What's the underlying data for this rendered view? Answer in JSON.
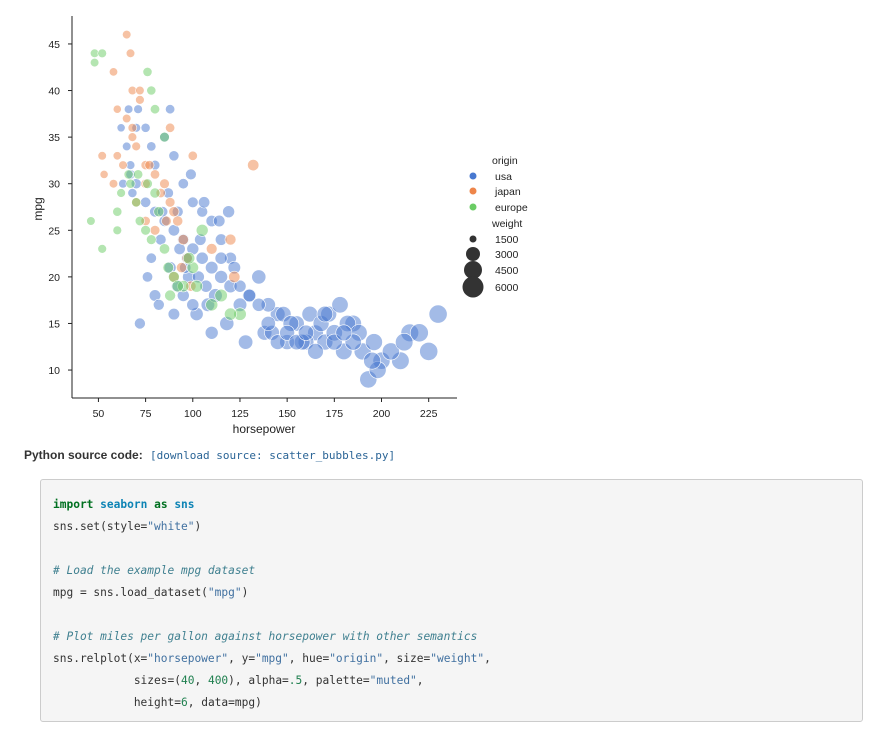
{
  "chart_data": {
    "type": "scatter",
    "title": "",
    "xlabel": "horsepower",
    "ylabel": "mpg",
    "xlim": [
      36,
      240
    ],
    "ylim": [
      7,
      48
    ],
    "xticks": [
      "50",
      "75",
      "100",
      "125",
      "150",
      "175",
      "200",
      "225"
    ],
    "yticks": [
      "10",
      "15",
      "20",
      "25",
      "30",
      "35",
      "40",
      "45"
    ],
    "hue": "origin",
    "size": "weight",
    "alpha": 0.5,
    "legend": {
      "placement": "right",
      "hue_title": "origin",
      "hue_entries": [
        {
          "label": "usa",
          "color": "#4878d0"
        },
        {
          "label": "japan",
          "color": "#ee854a"
        },
        {
          "label": "europe",
          "color": "#6acc64"
        }
      ],
      "size_title": "weight",
      "size_entries": [
        "1500",
        "3000",
        "4500",
        "6000"
      ]
    },
    "series": [
      {
        "name": "usa",
        "color": "#4878d0",
        "points": [
          [
            150,
            13,
            4100
          ],
          [
            165,
            14,
            4300
          ],
          [
            170,
            13,
            4400
          ],
          [
            175,
            14,
            4500
          ],
          [
            180,
            12,
            4600
          ],
          [
            190,
            12,
            4700
          ],
          [
            200,
            11,
            4800
          ],
          [
            210,
            11,
            4900
          ],
          [
            215,
            14,
            5000
          ],
          [
            220,
            14,
            5100
          ],
          [
            225,
            12,
            5100
          ],
          [
            230,
            16,
            5100
          ],
          [
            193,
            9,
            4800
          ],
          [
            198,
            10,
            4700
          ],
          [
            185,
            15,
            4600
          ],
          [
            160,
            13,
            4300
          ],
          [
            155,
            15,
            4200
          ],
          [
            145,
            16,
            4000
          ],
          [
            140,
            17,
            3900
          ],
          [
            135,
            20,
            3800
          ],
          [
            130,
            18,
            3700
          ],
          [
            125,
            17,
            3600
          ],
          [
            120,
            19,
            3500
          ],
          [
            115,
            20,
            3400
          ],
          [
            110,
            21,
            3300
          ],
          [
            105,
            22,
            3200
          ],
          [
            100,
            23,
            3100
          ],
          [
            95,
            24,
            3000
          ],
          [
            90,
            25,
            2900
          ],
          [
            85,
            26,
            2800
          ],
          [
            80,
            27,
            2700
          ],
          [
            75,
            28,
            2600
          ],
          [
            70,
            30,
            2500
          ],
          [
            67,
            31,
            2300
          ],
          [
            72,
            15,
            2800
          ],
          [
            80,
            18,
            3000
          ],
          [
            88,
            21,
            3100
          ],
          [
            92,
            19,
            3300
          ],
          [
            98,
            20,
            3400
          ],
          [
            102,
            16,
            3500
          ],
          [
            108,
            17,
            3600
          ],
          [
            112,
            18,
            3700
          ],
          [
            118,
            15,
            3800
          ],
          [
            128,
            13,
            3900
          ],
          [
            138,
            14,
            4000
          ],
          [
            142,
            14,
            4100
          ],
          [
            148,
            16,
            4200
          ],
          [
            152,
            15,
            4300
          ],
          [
            158,
            13,
            4300
          ],
          [
            162,
            16,
            4300
          ],
          [
            168,
            15,
            4400
          ],
          [
            172,
            16,
            4400
          ],
          [
            178,
            17,
            4500
          ],
          [
            182,
            15,
            4500
          ],
          [
            188,
            14,
            4600
          ],
          [
            196,
            13,
            4700
          ],
          [
            205,
            12,
            4800
          ],
          [
            212,
            13,
            4900
          ],
          [
            88,
            38,
            2300
          ],
          [
            85,
            35,
            2400
          ],
          [
            90,
            33,
            2500
          ],
          [
            95,
            30,
            2600
          ],
          [
            100,
            28,
            2700
          ],
          [
            105,
            27,
            2800
          ],
          [
            110,
            26,
            2900
          ],
          [
            115,
            24,
            3000
          ],
          [
            120,
            22,
            3100
          ],
          [
            125,
            19,
            3200
          ],
          [
            130,
            18,
            3300
          ],
          [
            135,
            17,
            3500
          ],
          [
            97,
            22,
            3000
          ],
          [
            103,
            20,
            3100
          ],
          [
            107,
            19,
            3200
          ],
          [
            92,
            27,
            2800
          ],
          [
            87,
            29,
            2600
          ],
          [
            83,
            24,
            2700
          ],
          [
            78,
            22,
            2600
          ],
          [
            76,
            20,
            2600
          ],
          [
            82,
            17,
            2800
          ],
          [
            90,
            16,
            3000
          ],
          [
            95,
            18,
            3100
          ],
          [
            100,
            17,
            3200
          ],
          [
            110,
            14,
            3400
          ],
          [
            140,
            15,
            3900
          ],
          [
            145,
            13,
            4000
          ],
          [
            150,
            14,
            4100
          ],
          [
            155,
            13,
            4200
          ],
          [
            165,
            12,
            4300
          ],
          [
            175,
            13,
            4400
          ],
          [
            185,
            13,
            4500
          ],
          [
            195,
            11,
            4700
          ],
          [
            160,
            14,
            4200
          ],
          [
            170,
            16,
            4300
          ],
          [
            180,
            14,
            4400
          ],
          [
            67,
            32,
            2100
          ],
          [
            65,
            34,
            2000
          ],
          [
            62,
            36,
            1900
          ],
          [
            68,
            29,
            2200
          ],
          [
            63,
            30,
            2100
          ],
          [
            70,
            36,
            2100
          ],
          [
            75,
            36,
            2200
          ],
          [
            78,
            34,
            2300
          ],
          [
            80,
            32,
            2400
          ],
          [
            66,
            38,
            2000
          ],
          [
            71,
            38,
            2100
          ],
          [
            84,
            27,
            2600
          ],
          [
            96,
            21,
            2900
          ],
          [
            104,
            24,
            3000
          ],
          [
            115,
            22,
            3200
          ],
          [
            122,
            21,
            3300
          ],
          [
            93,
            23,
            2900
          ],
          [
            119,
            27,
            3100
          ],
          [
            114,
            26,
            3000
          ],
          [
            106,
            28,
            2900
          ],
          [
            99,
            31,
            2700
          ]
        ]
      },
      {
        "name": "japan",
        "color": "#ee854a",
        "points": [
          [
            65,
            46,
            2000
          ],
          [
            67,
            44,
            2000
          ],
          [
            60,
            38,
            1900
          ],
          [
            65,
            37,
            2000
          ],
          [
            68,
            36,
            2100
          ],
          [
            70,
            34,
            2100
          ],
          [
            75,
            32,
            2200
          ],
          [
            80,
            31,
            2300
          ],
          [
            85,
            30,
            2400
          ],
          [
            88,
            36,
            2300
          ],
          [
            88,
            28,
            2400
          ],
          [
            90,
            27,
            2500
          ],
          [
            92,
            26,
            2500
          ],
          [
            95,
            24,
            2600
          ],
          [
            97,
            22,
            2600
          ],
          [
            100,
            33,
            2300
          ],
          [
            68,
            40,
            2000
          ],
          [
            72,
            40,
            2000
          ],
          [
            63,
            32,
            2000
          ],
          [
            58,
            30,
            2000
          ],
          [
            52,
            33,
            2000
          ],
          [
            53,
            31,
            1900
          ],
          [
            60,
            33,
            1950
          ],
          [
            70,
            28,
            2200
          ],
          [
            75,
            26,
            2300
          ],
          [
            75,
            30,
            2300
          ],
          [
            80,
            25,
            2400
          ],
          [
            90,
            20,
            2600
          ],
          [
            110,
            23,
            2700
          ],
          [
            120,
            24,
            2800
          ],
          [
            122,
            20,
            2900
          ],
          [
            132,
            32,
            2900
          ],
          [
            68,
            35,
            2100
          ],
          [
            72,
            39,
            2050
          ],
          [
            77,
            32,
            2200
          ],
          [
            83,
            29,
            2300
          ],
          [
            86,
            26,
            2400
          ],
          [
            94,
            21,
            2500
          ],
          [
            99,
            19,
            2600
          ],
          [
            58,
            42,
            1950
          ]
        ]
      },
      {
        "name": "europe",
        "color": "#6acc64",
        "points": [
          [
            48,
            44,
            2000
          ],
          [
            48,
            43,
            2000
          ],
          [
            52,
            44,
            2050
          ],
          [
            46,
            26,
            2000
          ],
          [
            52,
            23,
            2050
          ],
          [
            60,
            27,
            2200
          ],
          [
            60,
            25,
            2100
          ],
          [
            67,
            30,
            2200
          ],
          [
            70,
            28,
            2300
          ],
          [
            71,
            31,
            2300
          ],
          [
            72,
            26,
            2300
          ],
          [
            75,
            25,
            2400
          ],
          [
            76,
            30,
            2400
          ],
          [
            78,
            24,
            2400
          ],
          [
            80,
            29,
            2500
          ],
          [
            82,
            27,
            2500
          ],
          [
            85,
            23,
            2600
          ],
          [
            87,
            21,
            2700
          ],
          [
            90,
            20,
            2800
          ],
          [
            95,
            19,
            2900
          ],
          [
            100,
            21,
            3000
          ],
          [
            102,
            19,
            3100
          ],
          [
            105,
            25,
            3100
          ],
          [
            110,
            17,
            3200
          ],
          [
            115,
            18,
            3300
          ],
          [
            125,
            16,
            3300
          ],
          [
            76,
            42,
            2200
          ],
          [
            78,
            40,
            2200
          ],
          [
            80,
            38,
            2300
          ],
          [
            85,
            35,
            2400
          ],
          [
            62,
            29,
            2100
          ],
          [
            66,
            31,
            2200
          ],
          [
            88,
            18,
            2800
          ],
          [
            92,
            19,
            2900
          ],
          [
            98,
            22,
            3000
          ],
          [
            120,
            16,
            3200
          ]
        ]
      }
    ]
  },
  "source": {
    "label": "Python source code:",
    "link_text": "[download source: scatter_bubbles.py]"
  },
  "code": {
    "l1_kw1": "import",
    "l1_mod": "seaborn",
    "l1_kw2": "as",
    "l1_alias": "sns",
    "l2_a": "sns.set(style=",
    "l2_s": "\"white\"",
    "l2_b": ")",
    "l4_comment": "# Load the example mpg dataset",
    "l5_a": "mpg = sns.load_dataset(",
    "l5_s": "\"mpg\"",
    "l5_b": ")",
    "l7_comment": "# Plot miles per gallon against horsepower with other semantics",
    "l8_a": "sns.relplot(x=",
    "l8_s1": "\"horsepower\"",
    "l8_b": ", y=",
    "l8_s2": "\"mpg\"",
    "l8_c": ", hue=",
    "l8_s3": "\"origin\"",
    "l8_d": ", size=",
    "l8_s4": "\"weight\"",
    "l8_e": ",",
    "l9_a": "            sizes=(",
    "l9_n1": "40",
    "l9_b": ", ",
    "l9_n2": "400",
    "l9_c": "), alpha=",
    "l9_n3": ".5",
    "l9_d": ", palette=",
    "l9_s": "\"muted\"",
    "l9_e": ",",
    "l10_a": "            height=",
    "l10_n": "6",
    "l10_b": ", data=mpg)"
  }
}
